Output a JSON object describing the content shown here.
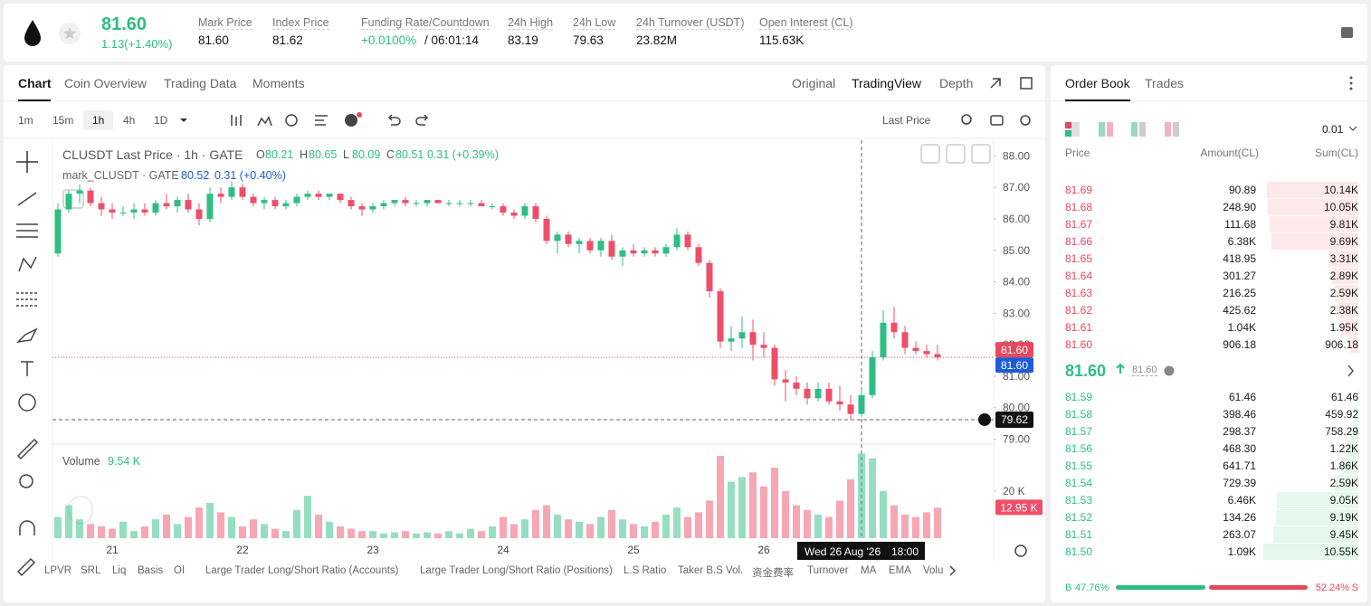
{
  "header": {
    "price": "81.60",
    "change": "1.13(+1.40%)",
    "stats": [
      {
        "label": "Mark Price",
        "value": "81.60"
      },
      {
        "label": "Index Price",
        "value": "81.62"
      },
      {
        "label": "Funding Rate/Countdown",
        "value": "+0.0100%",
        "value2": "/ 06:01:14"
      },
      {
        "label": "24h High",
        "value": "83.19"
      },
      {
        "label": "24h Low",
        "value": "79.63"
      },
      {
        "label": "24h Turnover (USDT)",
        "value": "23.82M"
      },
      {
        "label": "Open Interest (CL)",
        "value": "115.63K"
      }
    ]
  },
  "tabs": [
    "Chart",
    "Coin Overview",
    "Trading Data",
    "Moments"
  ],
  "views": [
    "Original",
    "TradingView",
    "Depth"
  ],
  "intervals": [
    "1m",
    "15m",
    "1h",
    "4h",
    "1D"
  ],
  "price_source": "Last Price",
  "chart_data": {
    "type": "candlestick",
    "title": "CLUSDT Last Price · 1h · GATE",
    "legend": [
      {
        "key": "O",
        "value": "80.21"
      },
      {
        "key": "H",
        "value": "80.65"
      },
      {
        "key": "L",
        "value": "80.09"
      },
      {
        "key": "C",
        "value": "80.51"
      }
    ],
    "change": "0.31 (+0.39%)",
    "overlay": {
      "name": "mark_CLUSDT · GATE",
      "value": "80.52",
      "change": "0.31 (+0.40%)"
    },
    "up_color": "#2ebd85",
    "down_color": "#ee4f68",
    "categories": [
      null,
      null,
      null,
      null,
      null,
      "21",
      null,
      null,
      null,
      null,
      null,
      null,
      null,
      null,
      null,
      null,
      null,
      "22",
      null,
      null,
      null,
      null,
      null,
      null,
      null,
      null,
      null,
      null,
      null,
      "23",
      null,
      null,
      null,
      null,
      null,
      null,
      null,
      null,
      null,
      null,
      null,
      "24",
      null,
      null,
      null,
      null,
      null,
      null,
      null,
      null,
      null,
      null,
      null,
      "25",
      null,
      null,
      null,
      null,
      null,
      null,
      null,
      null,
      null,
      null,
      null,
      "26",
      null,
      null,
      null,
      null,
      null,
      null,
      null,
      null,
      null,
      null,
      null,
      null,
      null,
      null,
      null,
      null
    ],
    "open": [
      84.9,
      86.3,
      86.8,
      86.9,
      86.5,
      86.3,
      86.2,
      86.2,
      86.3,
      86.2,
      86.5,
      86.4,
      86.6,
      86.3,
      86.0,
      86.8,
      86.7,
      87.0,
      86.7,
      86.5,
      86.6,
      86.4,
      86.5,
      86.7,
      86.8,
      86.7,
      86.8,
      86.6,
      86.4,
      86.3,
      86.4,
      86.5,
      86.6,
      86.5,
      86.5,
      86.6,
      86.5,
      86.5,
      86.5,
      86.5,
      86.4,
      86.4,
      86.2,
      86.1,
      86.4,
      86.0,
      85.3,
      85.5,
      85.2,
      85.3,
      85.0,
      85.3,
      84.8,
      85.0,
      84.9,
      85.0,
      84.9,
      85.1,
      85.5,
      85.1,
      84.6,
      83.7,
      82.1,
      82.2,
      82.4,
      82.0,
      81.9,
      80.9,
      80.8,
      80.6,
      80.3,
      80.6,
      80.2,
      80.1,
      79.8,
      80.4,
      81.6,
      82.7,
      82.4,
      81.9,
      81.8,
      81.7
    ],
    "high": [
      86.5,
      86.9,
      87.1,
      87.0,
      86.7,
      86.5,
      86.4,
      86.5,
      86.5,
      86.6,
      86.8,
      86.7,
      86.8,
      86.5,
      87.0,
      87.0,
      87.2,
      87.1,
      86.8,
      86.7,
      86.7,
      86.6,
      86.8,
      86.9,
      86.9,
      86.8,
      86.8,
      86.7,
      86.5,
      86.5,
      86.6,
      86.6,
      86.7,
      86.6,
      86.6,
      86.6,
      86.6,
      86.6,
      86.6,
      86.6,
      86.5,
      86.5,
      86.3,
      86.5,
      86.5,
      86.1,
      85.6,
      85.6,
      85.4,
      85.4,
      85.4,
      85.5,
      85.1,
      85.2,
      85.1,
      85.1,
      85.2,
      85.7,
      85.6,
      85.2,
      84.7,
      83.8,
      82.6,
      82.9,
      82.8,
      82.4,
      82.0,
      81.2,
      81.0,
      80.8,
      80.8,
      80.8,
      80.7,
      80.4,
      80.6,
      81.8,
      83.1,
      83.2,
      82.6,
      82.1,
      82.0,
      82.0
    ],
    "low": [
      84.8,
      86.2,
      86.5,
      86.4,
      86.1,
      86.0,
      86.1,
      86.0,
      86.1,
      86.1,
      86.3,
      86.2,
      86.2,
      85.8,
      85.9,
      86.5,
      86.6,
      86.6,
      86.4,
      86.3,
      86.3,
      86.3,
      86.4,
      86.6,
      86.6,
      86.6,
      86.5,
      86.3,
      86.1,
      86.2,
      86.3,
      86.4,
      86.4,
      86.4,
      86.4,
      86.5,
      86.4,
      86.4,
      86.4,
      86.4,
      86.3,
      86.1,
      86.0,
      86.0,
      85.9,
      85.2,
      84.9,
      85.1,
      84.9,
      84.9,
      84.8,
      84.7,
      84.5,
      84.8,
      84.8,
      84.8,
      84.8,
      85.0,
      85.0,
      84.5,
      83.5,
      81.9,
      81.8,
      81.9,
      81.5,
      81.6,
      80.7,
      80.2,
      80.4,
      80.1,
      80.2,
      80.1,
      79.9,
      79.6,
      79.7,
      80.3,
      81.5,
      82.2,
      81.7,
      81.7,
      81.6,
      81.5
    ],
    "close": [
      86.3,
      86.8,
      86.9,
      86.5,
      86.3,
      86.2,
      86.2,
      86.3,
      86.2,
      86.5,
      86.4,
      86.6,
      86.3,
      86.0,
      86.8,
      86.7,
      87.0,
      86.7,
      86.5,
      86.6,
      86.4,
      86.5,
      86.7,
      86.8,
      86.7,
      86.8,
      86.6,
      86.4,
      86.3,
      86.4,
      86.5,
      86.6,
      86.5,
      86.5,
      86.6,
      86.5,
      86.5,
      86.5,
      86.5,
      86.4,
      86.4,
      86.2,
      86.1,
      86.4,
      86.0,
      85.3,
      85.5,
      85.2,
      85.3,
      85.0,
      85.3,
      84.8,
      85.0,
      84.9,
      85.0,
      84.9,
      85.1,
      85.5,
      85.1,
      84.6,
      83.7,
      82.1,
      82.2,
      82.4,
      82.0,
      81.9,
      80.9,
      80.8,
      80.6,
      80.3,
      80.6,
      80.2,
      80.1,
      79.8,
      80.4,
      81.6,
      82.7,
      82.4,
      81.9,
      81.8,
      81.7,
      81.6
    ],
    "ylim": [
      78.9,
      88.5
    ],
    "yticks": [
      {
        "value": 79,
        "label": "79.00"
      },
      {
        "value": 80,
        "label": "80.00"
      },
      {
        "value": 81,
        "label": "81.00"
      },
      {
        "value": 82,
        "label": "82.00"
      },
      {
        "value": 83,
        "label": "83.00"
      },
      {
        "value": 84,
        "label": "84.00"
      },
      {
        "value": 85,
        "label": "85.00"
      },
      {
        "value": 86,
        "label": "86.00"
      },
      {
        "value": 87,
        "label": "87.00"
      },
      {
        "value": 88,
        "label": "88.00"
      }
    ],
    "markers": [
      {
        "value": 81.6,
        "label": "81.60",
        "color": "#e8475e"
      },
      {
        "value": 81.6,
        "label": "81.60",
        "color": "#1e5bd6"
      }
    ],
    "crosshair": {
      "date": "Wed 26 Aug '26",
      "time": "18:00",
      "price": {
        "value": 79.62,
        "label": "79.62"
      }
    },
    "volume": {
      "title": "Volume",
      "value": "9.54 K",
      "values": [
        9000,
        14000,
        8000,
        6000,
        5000,
        4000,
        7000,
        3000,
        5000,
        8000,
        10000,
        6000,
        9000,
        13000,
        15000,
        11000,
        9000,
        5000,
        8000,
        6000,
        4000,
        3000,
        12000,
        18000,
        10000,
        7000,
        5000,
        4000,
        3000,
        3000,
        2000,
        2500,
        3000,
        2000,
        2500,
        2000,
        3000,
        2000,
        4000,
        3000,
        5000,
        9000,
        6000,
        8000,
        12000,
        14000,
        10000,
        8000,
        7000,
        6000,
        9000,
        12000,
        8000,
        6000,
        5000,
        7000,
        10000,
        13000,
        9000,
        11000,
        16000,
        35000,
        24000,
        26000,
        28000,
        22000,
        30000,
        20000,
        14000,
        12000,
        10000,
        9000,
        16000,
        25000,
        36000,
        34000,
        20000,
        14000,
        10000,
        9000,
        11000,
        12950
      ],
      "ylim": [
        0,
        37700
      ],
      "yticks": [
        {
          "value": 20000,
          "label": "20 K"
        }
      ],
      "last": {
        "value": 12950,
        "label": "12.95 K"
      }
    }
  },
  "indicators": [
    "LPVR",
    "SRL",
    "Liq",
    "Basis",
    "OI",
    "Large Trader Long/Short Ratio (Accounts)",
    "Large Trader Long/Short Ratio (Positions)",
    "L.S Ratio",
    "Taker B.S Vol.",
    "资金费率",
    "Turnover",
    "MA",
    "EMA",
    "Volu"
  ],
  "order_book": {
    "tabs": [
      "Order Book",
      "Trades"
    ],
    "precision": "0.01",
    "columns": [
      "Price",
      "Amount(CL)",
      "Sum(CL)"
    ],
    "asks": [
      [
        "81.69",
        "90.89",
        "10.14K"
      ],
      [
        "81.68",
        "248.90",
        "10.05K"
      ],
      [
        "81.67",
        "111.68",
        "9.81K"
      ],
      [
        "81.66",
        "6.38K",
        "9.69K"
      ],
      [
        "81.65",
        "418.95",
        "3.31K"
      ],
      [
        "81.64",
        "301.27",
        "2.89K"
      ],
      [
        "81.63",
        "216.25",
        "2.59K"
      ],
      [
        "81.62",
        "425.62",
        "2.38K"
      ],
      [
        "81.61",
        "1.04K",
        "1.95K"
      ],
      [
        "81.60",
        "906.18",
        "906.18"
      ]
    ],
    "mid": {
      "price": "81.60",
      "mark": "81.60"
    },
    "bids": [
      [
        "81.59",
        "61.46",
        "61.46"
      ],
      [
        "81.58",
        "398.46",
        "459.92"
      ],
      [
        "81.57",
        "298.37",
        "758.29"
      ],
      [
        "81.56",
        "468.30",
        "1.22K"
      ],
      [
        "81.55",
        "641.71",
        "1.86K"
      ],
      [
        "81.54",
        "729.39",
        "2.59K"
      ],
      [
        "81.53",
        "6.46K",
        "9.05K"
      ],
      [
        "81.52",
        "134.26",
        "9.19K"
      ],
      [
        "81.51",
        "263.07",
        "9.45K"
      ],
      [
        "81.50",
        "1.09K",
        "10.55K"
      ]
    ],
    "buy_label": "B",
    "buy": {
      "value": 47.76,
      "label": "47.76%"
    },
    "sell": {
      "value": 52.24,
      "label": "52.24%"
    },
    "sell_label": "S"
  }
}
